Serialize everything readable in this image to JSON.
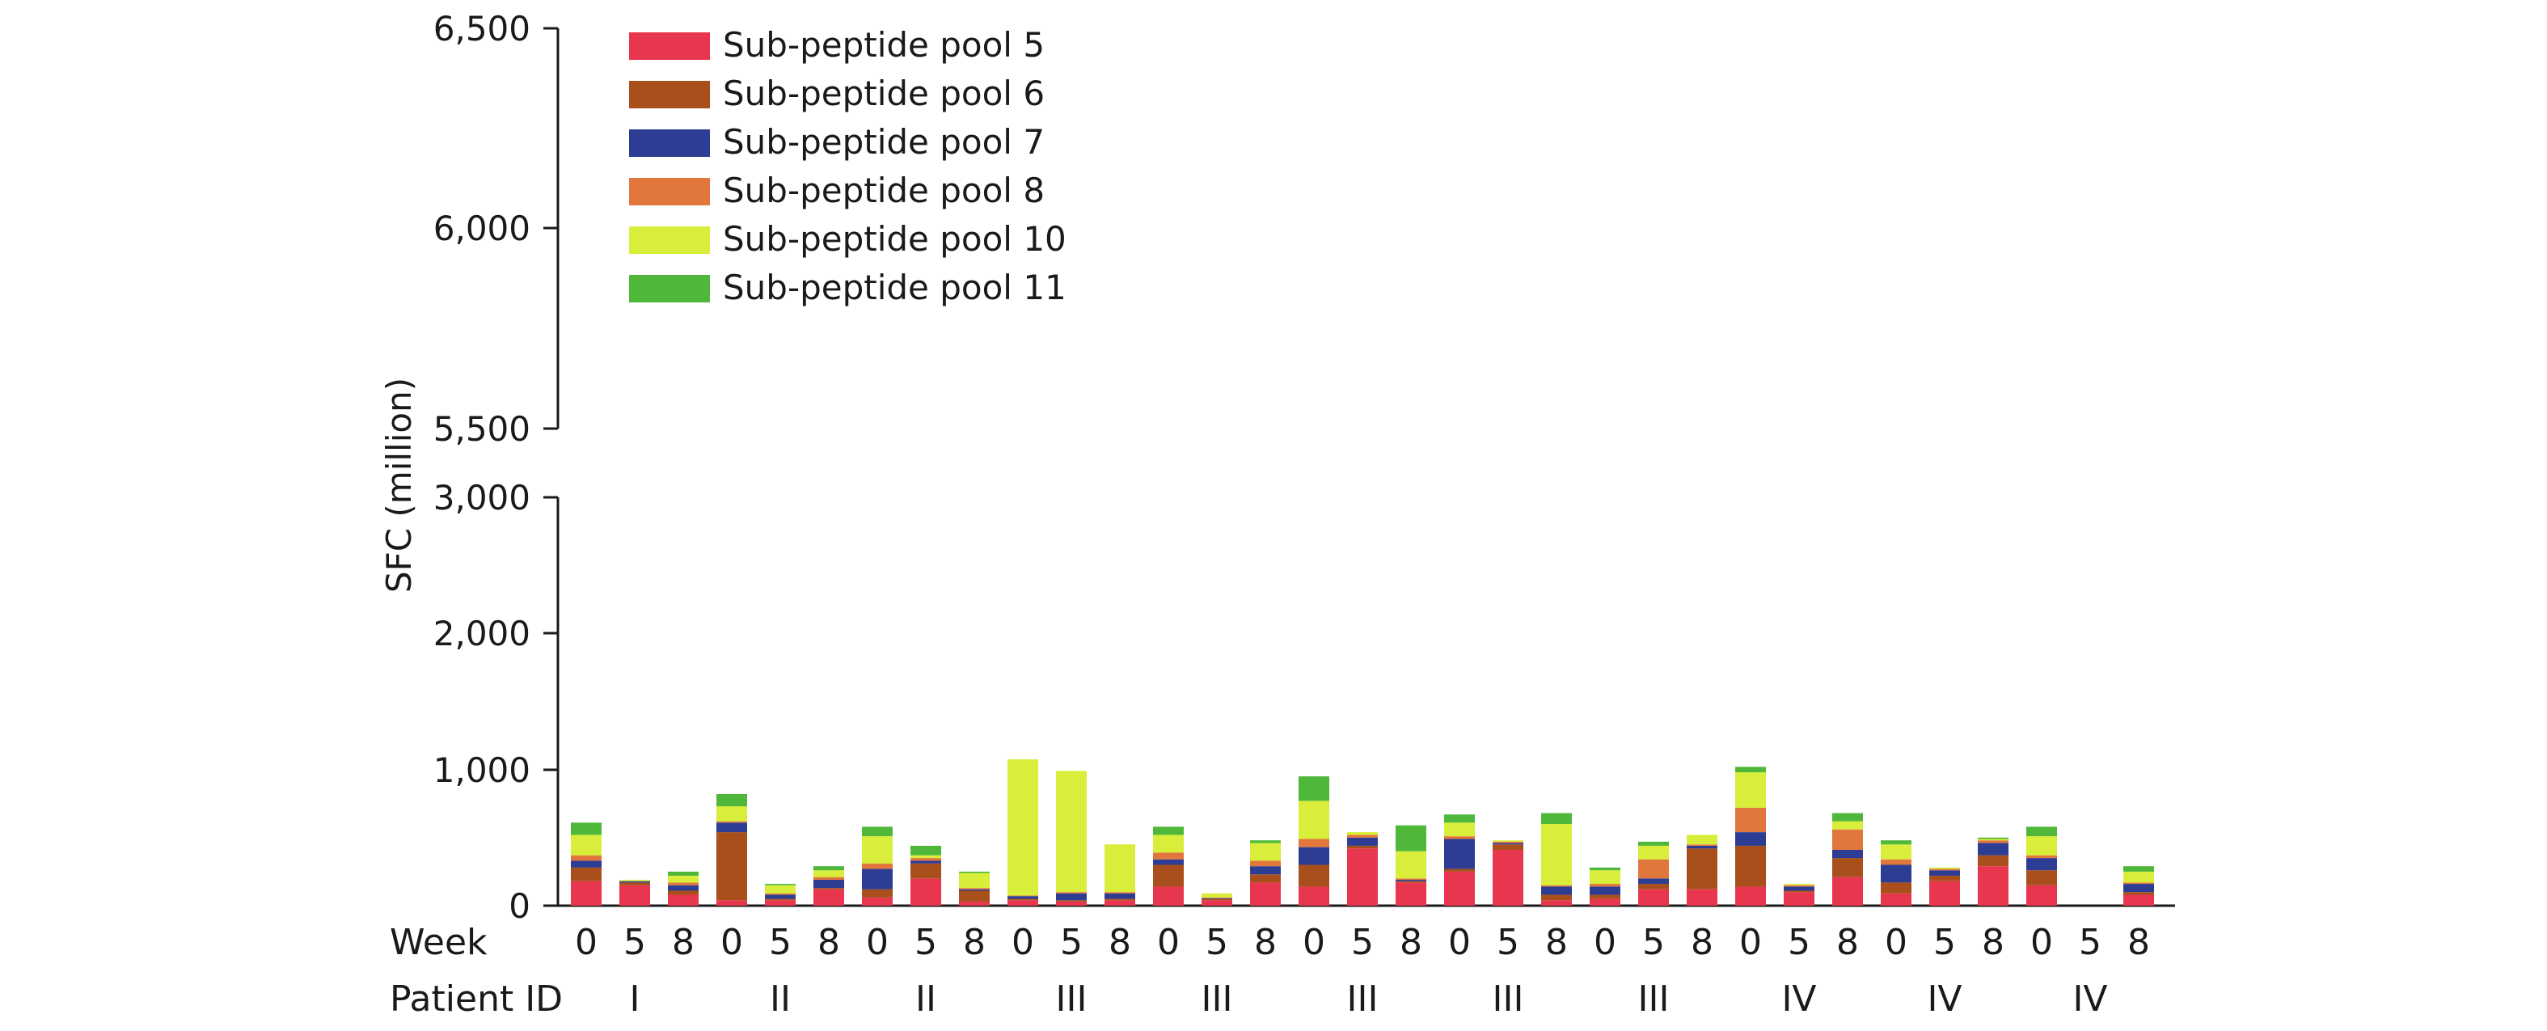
{
  "chart_data": {
    "type": "bar",
    "stacked": true,
    "ylabel": "SFC (million)",
    "broken_axis": true,
    "upper_ylim": [
      5500,
      6500
    ],
    "upper_ticks": [
      "5,500",
      "6,000",
      "6,500"
    ],
    "lower_ylim": [
      0,
      3000
    ],
    "lower_ticks": [
      "0",
      "1,000",
      "2,000",
      "3,000"
    ],
    "row_labels": {
      "week": "Week",
      "patient": "Patient ID"
    },
    "weeks": [
      "0",
      "5",
      "8",
      "0",
      "5",
      "8",
      "0",
      "5",
      "8",
      "0",
      "5",
      "8",
      "0",
      "5",
      "8",
      "0",
      "5",
      "8",
      "0",
      "5",
      "8",
      "0",
      "5",
      "8",
      "0",
      "5",
      "8",
      "0",
      "5",
      "8",
      "0",
      "5",
      "8"
    ],
    "patients": [
      "I",
      "II",
      "II",
      "III",
      "III",
      "III",
      "III",
      "III",
      "IV",
      "IV",
      "IV"
    ],
    "legend_position": "top-left",
    "series": [
      {
        "name": "Sub-peptide pool 5",
        "color": "#e8364e",
        "values": [
          180,
          150,
          80,
          40,
          40,
          120,
          60,
          200,
          30,
          40,
          30,
          40,
          140,
          40,
          170,
          140,
          420,
          170,
          250,
          410,
          40,
          50,
          120,
          120,
          140,
          100,
          210,
          90,
          180,
          290,
          150,
          0,
          80
        ]
      },
      {
        "name": "Sub-peptide pool 6",
        "color": "#a84f1c",
        "values": [
          100,
          20,
          30,
          500,
          10,
          10,
          60,
          110,
          80,
          10,
          10,
          10,
          160,
          10,
          60,
          160,
          20,
          10,
          20,
          40,
          40,
          30,
          40,
          300,
          300,
          10,
          140,
          80,
          40,
          80,
          110,
          0,
          20
        ]
      },
      {
        "name": "Sub-peptide pool 7",
        "color": "#2d3d94",
        "values": [
          50,
          10,
          40,
          70,
          30,
          60,
          150,
          20,
          10,
          20,
          50,
          40,
          40,
          5,
          60,
          130,
          60,
          10,
          220,
          10,
          60,
          60,
          40,
          20,
          100,
          30,
          60,
          130,
          40,
          90,
          90,
          0,
          60
        ]
      },
      {
        "name": "Sub-peptide pool 8",
        "color": "#e2773d",
        "values": [
          40,
          0,
          20,
          10,
          10,
          20,
          40,
          20,
          10,
          5,
          10,
          10,
          50,
          5,
          40,
          60,
          20,
          10,
          20,
          10,
          10,
          20,
          140,
          10,
          180,
          10,
          150,
          40,
          10,
          20,
          20,
          0,
          10
        ]
      },
      {
        "name": "Sub-peptide pool 10",
        "color": "#d8ee3a",
        "values": [
          150,
          10,
          50,
          110,
          60,
          50,
          200,
          20,
          110,
          1000,
          890,
          350,
          130,
          30,
          130,
          280,
          20,
          200,
          100,
          10,
          450,
          100,
          100,
          70,
          260,
          10,
          60,
          110,
          10,
          10,
          140,
          0,
          80
        ]
      },
      {
        "name": "Sub-peptide pool 11",
        "color": "#4fb83a",
        "values": [
          90,
          0,
          30,
          90,
          10,
          30,
          70,
          70,
          10,
          0,
          0,
          0,
          60,
          0,
          20,
          180,
          0,
          190,
          60,
          0,
          80,
          20,
          30,
          0,
          40,
          0,
          60,
          30,
          0,
          10,
          70,
          0,
          40
        ]
      }
    ]
  }
}
